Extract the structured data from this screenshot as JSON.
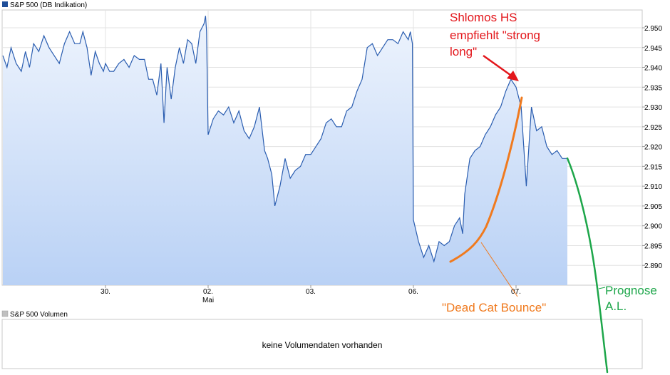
{
  "chart_data": {
    "type": "line",
    "title": "S&P 500 (DB Indikation)",
    "legend_color": "#1f4e99",
    "line_color": "#2a5db0",
    "fill_top_color": "#eef4fd",
    "fill_bottom_color": "#b9d1f5",
    "ylim": [
      2.885,
      2.9545
    ],
    "yticks": [
      "2.890",
      "2.895",
      "2.900",
      "2.905",
      "2.910",
      "2.915",
      "2.920",
      "2.925",
      "2.930",
      "2.935",
      "2.940",
      "2.945",
      "2.950"
    ],
    "ytick_values": [
      2.89,
      2.895,
      2.9,
      2.905,
      2.91,
      2.915,
      2.92,
      2.925,
      2.93,
      2.935,
      2.94,
      2.945,
      2.95
    ],
    "xlim": [
      0,
      6.0
    ],
    "xticks": [
      {
        "x": 1.0,
        "label": "30.",
        "sublabel": ""
      },
      {
        "x": 2.0,
        "label": "02.",
        "sublabel": "Mai"
      },
      {
        "x": 3.0,
        "label": "03.",
        "sublabel": ""
      },
      {
        "x": 4.0,
        "label": "06.",
        "sublabel": ""
      },
      {
        "x": 5.0,
        "label": "07.",
        "sublabel": ""
      }
    ],
    "series": [
      {
        "x": [
          0.0,
          0.04,
          0.08,
          0.13,
          0.18,
          0.22,
          0.26,
          0.3,
          0.35,
          0.4,
          0.45,
          0.5,
          0.55,
          0.6,
          0.65,
          0.7,
          0.75,
          0.78,
          0.82,
          0.86,
          0.9,
          0.94,
          0.98,
          1.0,
          1.04,
          1.08,
          1.13,
          1.18,
          1.23,
          1.28,
          1.33,
          1.38,
          1.42,
          1.46,
          1.5,
          1.54,
          1.57,
          1.6,
          1.64,
          1.68,
          1.72,
          1.76,
          1.8,
          1.84,
          1.88,
          1.92,
          1.96,
          1.975,
          1.985,
          2.0,
          2.05,
          2.1,
          2.15,
          2.2,
          2.25,
          2.3,
          2.35,
          2.4,
          2.45,
          2.5,
          2.55,
          2.58,
          2.62,
          2.65,
          2.7,
          2.75,
          2.8,
          2.85,
          2.9,
          2.95,
          3.0,
          3.05,
          3.1,
          3.15,
          3.2,
          3.25,
          3.3,
          3.35,
          3.4,
          3.45,
          3.5,
          3.55,
          3.6,
          3.65,
          3.7,
          3.75,
          3.8,
          3.85,
          3.9,
          3.95,
          3.97,
          3.99,
          4.0,
          4.05,
          4.1,
          4.15,
          4.2,
          4.25,
          4.3,
          4.35,
          4.4,
          4.45,
          4.48,
          4.5,
          4.55,
          4.6,
          4.65,
          4.7,
          4.75,
          4.8,
          4.85,
          4.9,
          4.95,
          5.0,
          5.05,
          5.1,
          5.15,
          5.2,
          5.25,
          5.3,
          5.35,
          5.4,
          5.45,
          5.5
        ],
        "values": [
          2.943,
          2.94,
          2.945,
          2.941,
          2.939,
          2.944,
          2.94,
          2.946,
          2.944,
          2.948,
          2.945,
          2.943,
          2.941,
          2.946,
          2.949,
          2.946,
          2.946,
          2.949,
          2.945,
          2.938,
          2.944,
          2.941,
          2.939,
          2.941,
          2.939,
          2.939,
          2.941,
          2.942,
          2.94,
          2.943,
          2.942,
          2.942,
          2.937,
          2.937,
          2.933,
          2.941,
          2.926,
          2.94,
          2.932,
          2.94,
          2.945,
          2.941,
          2.947,
          2.946,
          2.941,
          2.949,
          2.951,
          2.953,
          2.949,
          2.923,
          2.927,
          2.929,
          2.928,
          2.93,
          2.926,
          2.929,
          2.924,
          2.922,
          2.925,
          2.93,
          2.919,
          2.917,
          2.913,
          2.905,
          2.91,
          2.917,
          2.912,
          2.914,
          2.915,
          2.918,
          2.918,
          2.92,
          2.922,
          2.926,
          2.927,
          2.925,
          2.925,
          2.929,
          2.93,
          2.934,
          2.937,
          2.945,
          2.946,
          2.943,
          2.945,
          2.947,
          2.947,
          2.946,
          2.949,
          2.947,
          2.949,
          2.946,
          2.9015,
          2.896,
          2.892,
          2.895,
          2.891,
          2.896,
          2.895,
          2.896,
          2.9,
          2.902,
          2.898,
          2.908,
          2.917,
          2.919,
          2.92,
          2.923,
          2.925,
          2.928,
          2.93,
          2.934,
          2.937,
          2.935,
          2.93,
          2.91,
          2.93,
          2.924,
          2.925,
          2.92,
          2.918,
          2.919,
          2.917,
          2.917
        ]
      }
    ],
    "annotations": {
      "headline": {
        "lines": [
          "Shlomos HS",
          "empfiehlt \"strong",
          "long\""
        ],
        "color": "#e3161b"
      },
      "dead_cat": {
        "text": "\"Dead Cat Bounce\"",
        "color": "#f07a1e"
      },
      "forecast": {
        "lines": [
          "Prognose",
          "A.L."
        ],
        "color": "#1da64a"
      }
    },
    "volume_panel": {
      "legend": "S&P 500 Volumen",
      "legend_color": "#bfbfbf",
      "message": "keine Volumendaten vorhanden"
    }
  }
}
